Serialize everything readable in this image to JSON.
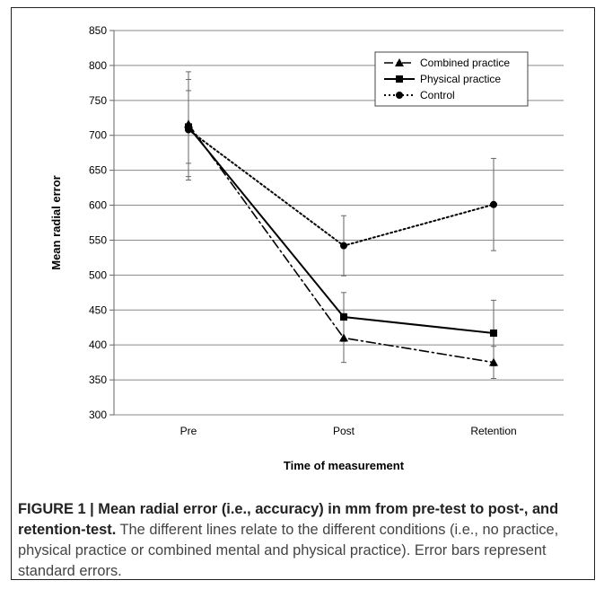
{
  "chart_data": {
    "type": "line",
    "categories": [
      "Pre",
      "Post",
      "Retention"
    ],
    "xlabel": "Time of measurement",
    "ylabel": "Mean radial error",
    "ylim": [
      300,
      850
    ],
    "yticks": [
      300,
      350,
      400,
      450,
      500,
      550,
      600,
      650,
      700,
      750,
      800,
      850
    ],
    "grid": "horizontal",
    "legend_position": "top-right",
    "series": [
      {
        "name": "Combined practice",
        "values": [
          716,
          410,
          375
        ],
        "error": [
          75,
          35,
          23
        ],
        "marker": "triangle",
        "dash": "dashdot",
        "color": "#000000"
      },
      {
        "name": "Physical practice",
        "values": [
          712,
          440,
          417
        ],
        "error": [
          52,
          35,
          47
        ],
        "marker": "square",
        "dash": "solid",
        "color": "#000000"
      },
      {
        "name": "Control",
        "values": [
          708,
          542,
          601
        ],
        "error": [
          72,
          43,
          66
        ],
        "marker": "circle",
        "dash": "dotted",
        "color": "#000000"
      }
    ]
  },
  "caption": {
    "label": "FIGURE 1 | ",
    "title": "Mean radial error (i.e., accuracy) in mm from pre-test to post-, and retention-test.",
    "text": " The different lines relate to the different conditions (i.e., no practice, physical practice or combined mental and physical practice). Error bars represent standard errors."
  }
}
